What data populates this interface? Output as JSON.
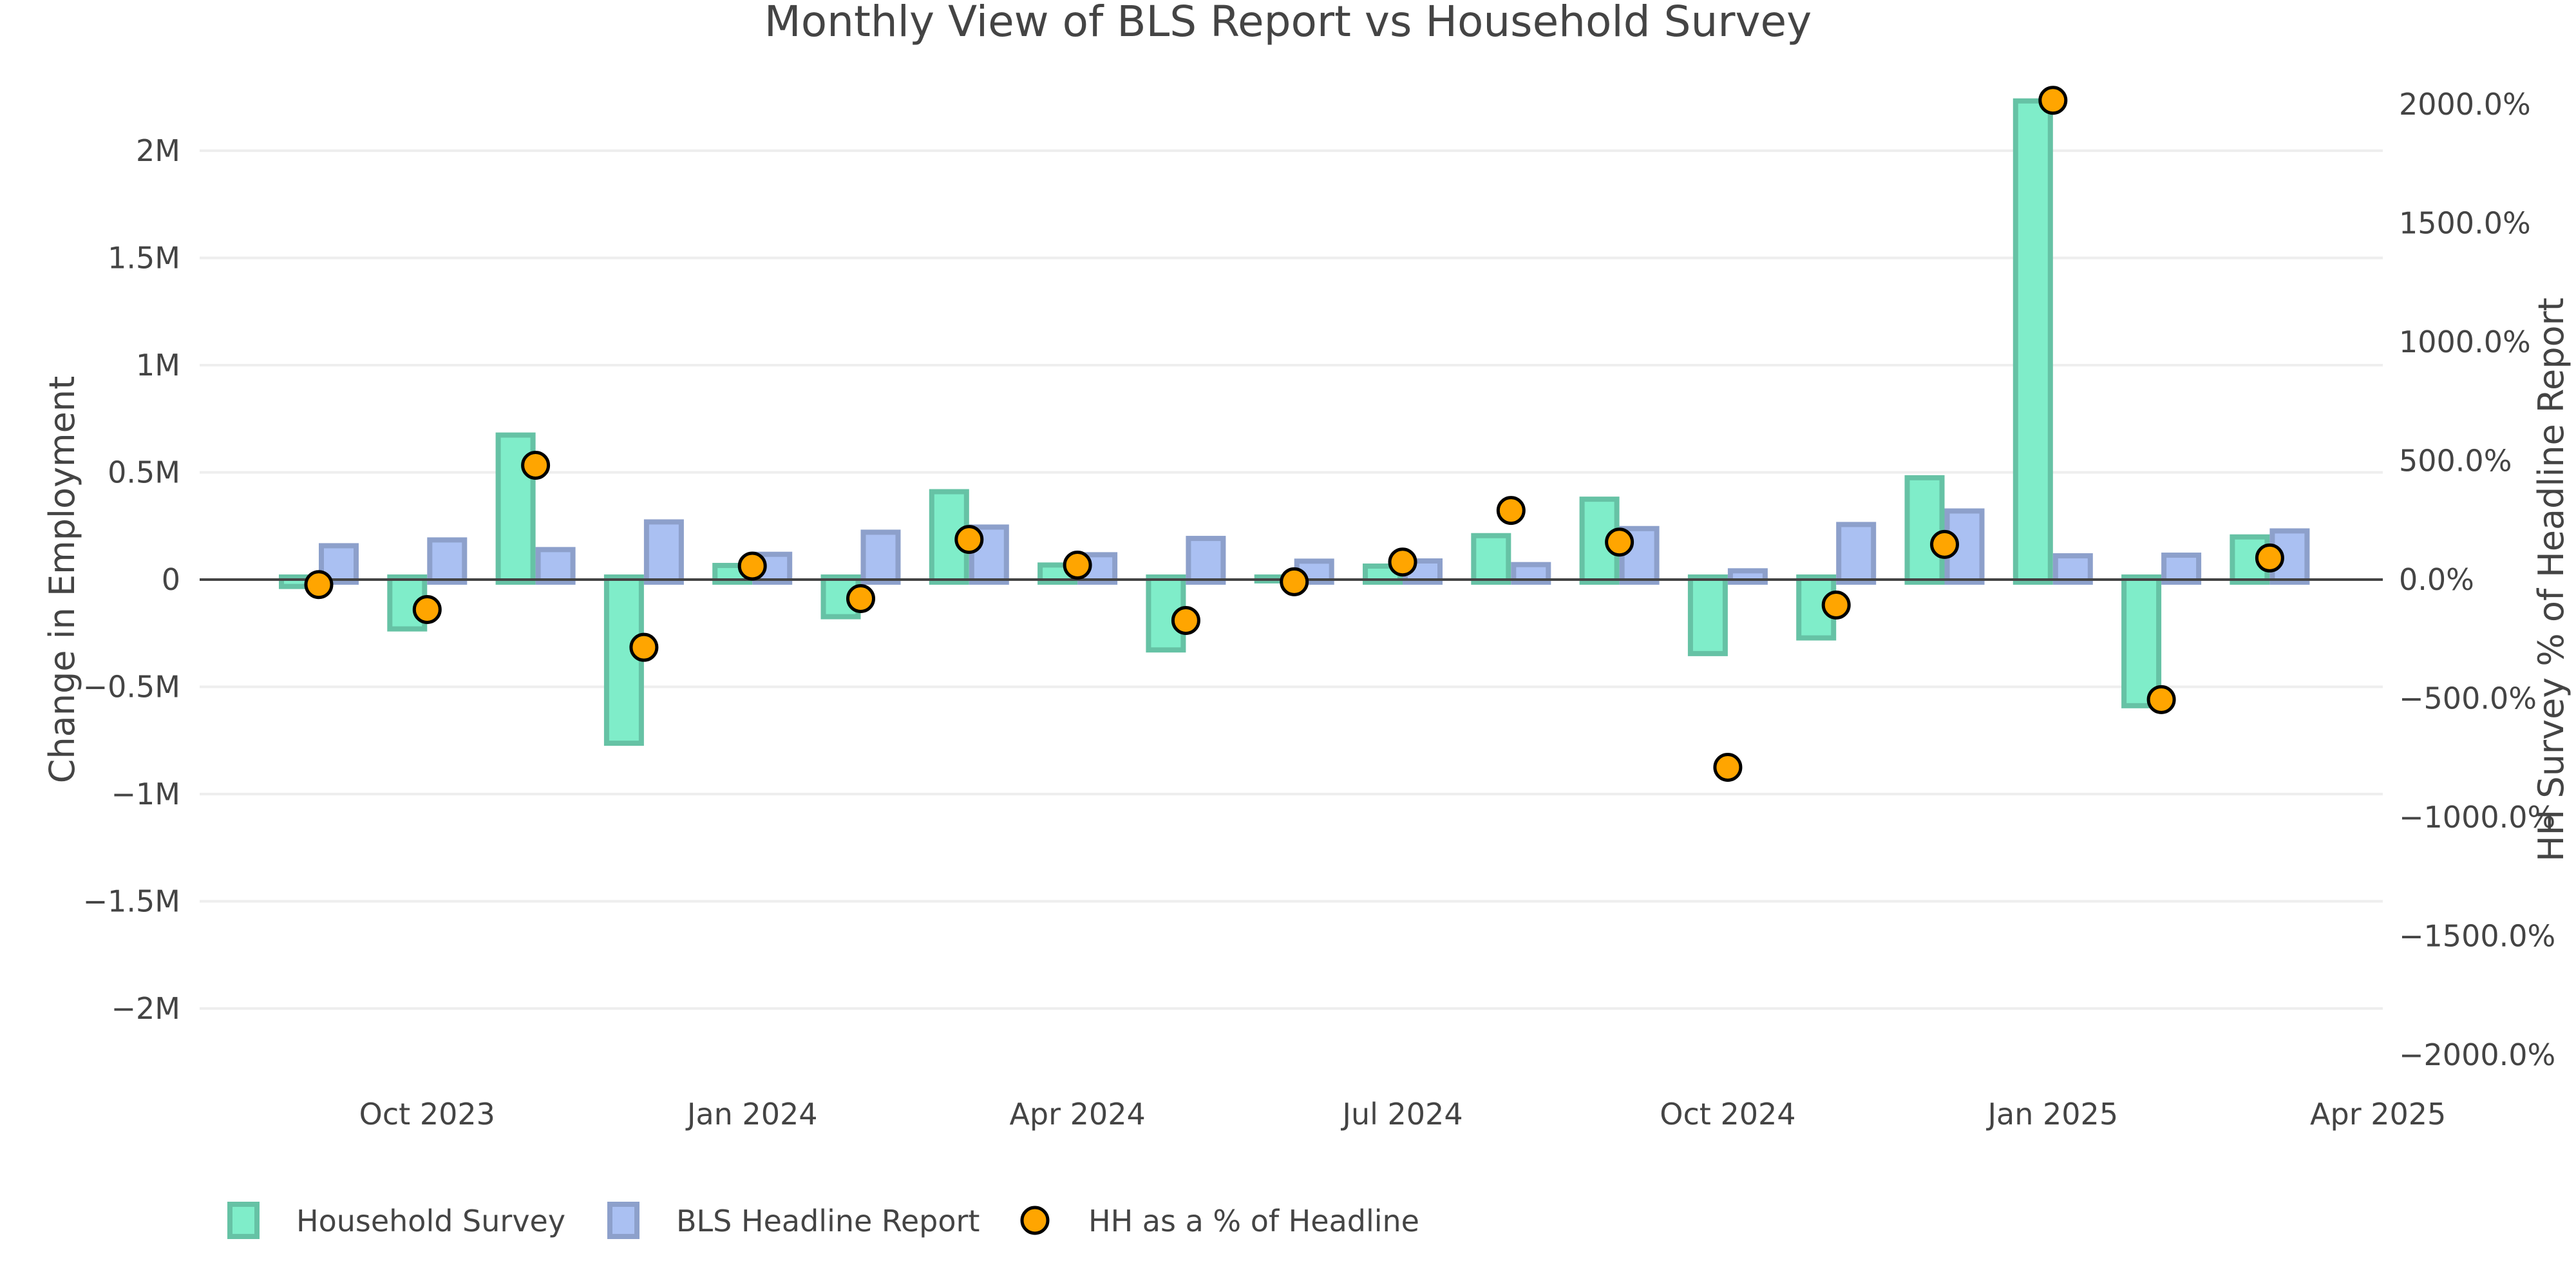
{
  "chart_data": {
    "type": "bar",
    "title": "Monthly View of BLS Report vs Household Survey",
    "xlabel": "",
    "ylabel": "Change in Employment",
    "y2label": "HH Survey % of Headline Report",
    "categories": [
      "Sep 2023",
      "Oct 2023",
      "Nov 2023",
      "Dec 2023",
      "Jan 2024",
      "Feb 2024",
      "Mar 2024",
      "Apr 2024",
      "May 2024",
      "Jun 2024",
      "Jul 2024",
      "Aug 2024",
      "Sep 2024",
      "Oct 2024",
      "Nov 2024",
      "Dec 2024",
      "Jan 2025",
      "Feb 2025",
      "Mar 2025"
    ],
    "x_tick_labels": [
      "Oct 2023",
      "Jan 2024",
      "Apr 2024",
      "Jul 2024",
      "Oct 2024",
      "Jan 2025",
      "Apr 2025"
    ],
    "y_tick_labels": [
      "2M",
      "1.5M",
      "1M",
      "0.5M",
      "0",
      "−0.5M",
      "−1M",
      "−1.5M",
      "−2M"
    ],
    "y_ticks": [
      2000000,
      1500000,
      1000000,
      500000,
      0,
      -500000,
      -1000000,
      -1500000,
      -2000000
    ],
    "y2_tick_labels": [
      "2000.0%",
      "1500.0%",
      "1000.0%",
      "500.0%",
      "0.0%",
      "−500.0%",
      "−1000.0%",
      "−1500.0%",
      "−2000.0%"
    ],
    "y2_ticks": [
      2000,
      1500,
      1000,
      500,
      0,
      -500,
      -1000,
      -1500,
      -2000
    ],
    "ylim": [
      -2300000,
      2300000
    ],
    "y2lim": [
      -2060,
      2060
    ],
    "grid": true,
    "legend_position": "bottom-left",
    "series": [
      {
        "name": "Household Survey",
        "type": "bar",
        "axis": "left",
        "color": "#7fedc9",
        "border_color": "#66c2a5",
        "values": [
          -44000,
          -242000,
          686000,
          -775000,
          78000,
          -185000,
          422000,
          80000,
          -340000,
          -18000,
          75000,
          217000,
          387000,
          -357000,
          -284000,
          487000,
          2244000,
          -600000,
          211000
        ]
      },
      {
        "name": "BLS Headline Report",
        "type": "bar",
        "axis": "left",
        "color": "#aac0f2",
        "border_color": "#8da0cb",
        "values": [
          170000,
          197000,
          152000,
          281000,
          130000,
          233000,
          257000,
          128000,
          204000,
          98000,
          99000,
          82000,
          250000,
          53000,
          269000,
          332000,
          123000,
          126000,
          239000
        ]
      },
      {
        "name": "HH as a % of Headline",
        "type": "scatter",
        "axis": "right",
        "color": "#ffa500",
        "border_color": "#000000",
        "values": [
          -21,
          -126,
          481,
          -285,
          57,
          -80,
          169,
          61,
          -172,
          -9,
          74,
          291,
          158,
          -790,
          -107,
          148,
          2017,
          -505,
          91
        ]
      }
    ]
  }
}
